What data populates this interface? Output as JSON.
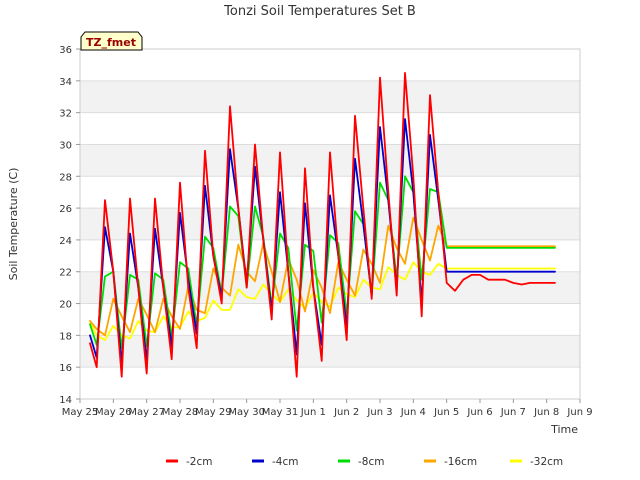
{
  "chart_data": {
    "type": "line",
    "title": "Tonzi Soil Temperatures Set B",
    "xlabel": "Time",
    "ylabel": "Soil Temperature (C)",
    "site_badge": "TZ_fmet",
    "xlim": [
      0,
      15
    ],
    "ylim": [
      14,
      36
    ],
    "x_ticks": [
      {
        "x": 0,
        "label": "May 25"
      },
      {
        "x": 1,
        "label": "May 26"
      },
      {
        "x": 2,
        "label": "May 27"
      },
      {
        "x": 3,
        "label": "May 28"
      },
      {
        "x": 4,
        "label": "May 29"
      },
      {
        "x": 5,
        "label": "May 30"
      },
      {
        "x": 6,
        "label": "May 31"
      },
      {
        "x": 7,
        "label": "Jun 1"
      },
      {
        "x": 8,
        "label": "Jun 2"
      },
      {
        "x": 9,
        "label": "Jun 3"
      },
      {
        "x": 10,
        "label": "Jun 4"
      },
      {
        "x": 11,
        "label": "Jun 5"
      },
      {
        "x": 12,
        "label": "Jun 6"
      },
      {
        "x": 13,
        "label": "Jun 7"
      },
      {
        "x": 14,
        "label": "Jun 8"
      },
      {
        "x": 15,
        "label": "Jun 9"
      }
    ],
    "y_ticks": [
      14,
      16,
      18,
      20,
      22,
      24,
      26,
      28,
      30,
      32,
      34,
      36
    ],
    "grid": "horizontal",
    "background_bands": "alternating gray",
    "legend_position": "bottom",
    "series": [
      {
        "name": "-2cm",
        "color": "#ff0000",
        "x": [
          0.3,
          0.5,
          0.75,
          1.0,
          1.25,
          1.5,
          1.75,
          2.0,
          2.25,
          2.5,
          2.75,
          3.0,
          3.25,
          3.5,
          3.75,
          4.0,
          4.25,
          4.5,
          4.75,
          5.0,
          5.25,
          5.5,
          5.75,
          6.0,
          6.25,
          6.5,
          6.75,
          7.0,
          7.25,
          7.5,
          7.75,
          8.0,
          8.25,
          8.5,
          8.75,
          9.0,
          9.25,
          9.5,
          9.75,
          10.0,
          10.25,
          10.5,
          10.75,
          11.0,
          11.25,
          11.5,
          11.75,
          12.0,
          12.25,
          12.5,
          12.75,
          13.0,
          13.25,
          13.5,
          13.75,
          14.0,
          14.25
        ],
        "y": [
          17.5,
          16.0,
          26.5,
          22.0,
          15.4,
          26.6,
          21.0,
          15.6,
          26.6,
          21.0,
          16.5,
          27.6,
          21.0,
          17.2,
          29.6,
          23.0,
          20.0,
          32.4,
          26.0,
          21.0,
          30.0,
          24.0,
          19.0,
          29.5,
          22.0,
          15.4,
          28.5,
          21.0,
          16.4,
          29.5,
          23.0,
          17.7,
          31.8,
          26.0,
          20.3,
          34.2,
          27.0,
          20.5,
          34.5,
          28.0,
          19.2,
          33.1,
          27.0,
          21.3,
          20.8,
          21.5,
          21.8,
          21.8,
          21.5,
          21.5,
          21.5,
          21.3,
          21.2,
          21.3,
          21.3,
          21.3,
          21.3
        ]
      },
      {
        "name": "-4cm",
        "color": "#0000cc",
        "x": [
          0.3,
          0.5,
          0.75,
          1.0,
          1.25,
          1.5,
          1.75,
          2.0,
          2.25,
          2.5,
          2.75,
          3.0,
          3.25,
          3.5,
          3.75,
          4.0,
          4.25,
          4.5,
          4.75,
          5.0,
          5.25,
          5.5,
          5.75,
          6.0,
          6.25,
          6.5,
          6.75,
          7.0,
          7.25,
          7.5,
          7.75,
          8.0,
          8.25,
          8.5,
          8.75,
          9.0,
          9.25,
          9.5,
          9.75,
          10.0,
          10.25,
          10.5,
          10.75,
          11.0,
          11.25,
          11.5,
          11.75,
          12.0,
          12.25,
          12.5,
          12.75,
          13.0,
          13.25,
          13.5,
          13.75,
          14.0,
          14.25
        ],
        "y": [
          18.0,
          16.6,
          24.8,
          22.0,
          16.2,
          24.4,
          21.0,
          16.4,
          24.7,
          21.0,
          17.3,
          25.7,
          21.5,
          18.1,
          27.4,
          23.0,
          20.4,
          29.7,
          26.0,
          21.2,
          28.6,
          24.0,
          19.5,
          27.0,
          22.0,
          16.8,
          26.3,
          21.0,
          17.4,
          26.8,
          23.0,
          18.5,
          29.1,
          25.0,
          20.5,
          31.1,
          26.5,
          20.9,
          31.6,
          27.0,
          20.0,
          30.6,
          26.5,
          22.0,
          22.0,
          22.0,
          22.0,
          22.0,
          22.0,
          22.0,
          22.0,
          22.0,
          22.0,
          22.0,
          22.0,
          22.0,
          22.0
        ]
      },
      {
        "name": "-8cm",
        "color": "#00dd00",
        "x": [
          0.3,
          0.5,
          0.75,
          1.0,
          1.25,
          1.5,
          1.75,
          2.0,
          2.25,
          2.5,
          2.75,
          3.0,
          3.25,
          3.5,
          3.75,
          4.0,
          4.25,
          4.5,
          4.75,
          5.0,
          5.25,
          5.5,
          5.75,
          6.0,
          6.25,
          6.5,
          6.75,
          7.0,
          7.25,
          7.5,
          7.75,
          8.0,
          8.25,
          8.5,
          8.75,
          9.0,
          9.25,
          9.5,
          9.75,
          10.0,
          10.25,
          10.5,
          10.75,
          11.0,
          11.25,
          11.5,
          11.75,
          12.0,
          12.25,
          12.5,
          12.75,
          13.0,
          13.25,
          13.5,
          13.75,
          14.0,
          14.25
        ],
        "y": [
          18.7,
          17.4,
          21.7,
          22.0,
          17.2,
          21.8,
          21.5,
          17.3,
          21.9,
          21.5,
          17.9,
          22.6,
          22.2,
          18.6,
          24.2,
          23.5,
          20.6,
          26.1,
          25.5,
          21.0,
          26.1,
          24.2,
          19.8,
          24.4,
          23.5,
          18.3,
          23.7,
          23.3,
          18.8,
          24.3,
          23.8,
          19.3,
          25.8,
          25.0,
          20.5,
          27.6,
          26.5,
          21.5,
          28.0,
          27.0,
          21.5,
          27.2,
          27.0,
          23.5,
          23.5,
          23.5,
          23.5,
          23.5,
          23.5,
          23.5,
          23.5,
          23.5,
          23.5,
          23.5,
          23.5,
          23.5,
          23.5
        ]
      },
      {
        "name": "-16cm",
        "color": "#ffa500",
        "x": [
          0.3,
          0.5,
          0.75,
          1.0,
          1.25,
          1.5,
          1.75,
          2.0,
          2.25,
          2.5,
          2.75,
          3.0,
          3.25,
          3.5,
          3.75,
          4.0,
          4.25,
          4.5,
          4.75,
          5.0,
          5.25,
          5.5,
          5.75,
          6.0,
          6.25,
          6.5,
          6.75,
          7.0,
          7.25,
          7.5,
          7.75,
          8.0,
          8.25,
          8.5,
          8.75,
          9.0,
          9.25,
          9.5,
          9.75,
          10.0,
          10.25,
          10.5,
          10.75,
          11.0,
          11.25,
          11.5,
          11.75,
          12.0,
          12.25,
          12.5,
          12.75,
          13.0,
          13.25,
          13.5,
          13.75,
          14.0,
          14.25
        ],
        "y": [
          18.9,
          18.4,
          18.0,
          20.3,
          19.2,
          18.2,
          20.3,
          19.3,
          18.2,
          20.3,
          19.2,
          18.4,
          21.1,
          19.6,
          19.4,
          22.2,
          21.0,
          20.5,
          23.7,
          22.0,
          21.4,
          23.8,
          22.0,
          20.1,
          22.8,
          21.5,
          19.5,
          22.1,
          21.0,
          19.4,
          22.6,
          21.5,
          20.5,
          23.4,
          22.5,
          21.3,
          24.9,
          23.5,
          22.5,
          25.4,
          24.0,
          22.7,
          24.9,
          23.6,
          23.6,
          23.6,
          23.6,
          23.6,
          23.6,
          23.6,
          23.6,
          23.6,
          23.6,
          23.6,
          23.6,
          23.6,
          23.6
        ]
      },
      {
        "name": "-32cm",
        "color": "#ffff00",
        "x": [
          0.3,
          0.5,
          0.75,
          1.0,
          1.25,
          1.5,
          1.75,
          2.0,
          2.25,
          2.5,
          2.75,
          3.0,
          3.25,
          3.5,
          3.75,
          4.0,
          4.25,
          4.5,
          4.75,
          5.0,
          5.25,
          5.5,
          5.75,
          6.0,
          6.25,
          6.5,
          6.75,
          7.0,
          7.25,
          7.5,
          7.75,
          8.0,
          8.25,
          8.5,
          8.75,
          9.0,
          9.25,
          9.5,
          9.75,
          10.0,
          10.25,
          10.5,
          10.75,
          11.0,
          11.25,
          11.5,
          11.75,
          12.0,
          12.25,
          12.5,
          12.75,
          13.0,
          13.25,
          13.5,
          13.75,
          14.0,
          14.25
        ],
        "y": [
          18.9,
          18.0,
          17.7,
          18.6,
          18.0,
          17.8,
          18.9,
          18.3,
          18.2,
          19.2,
          18.5,
          18.5,
          19.5,
          18.9,
          19.1,
          20.2,
          19.6,
          19.6,
          20.9,
          20.4,
          20.3,
          21.2,
          20.6,
          20.1,
          20.9,
          20.2,
          19.7,
          20.7,
          20.1,
          19.8,
          21.0,
          20.6,
          20.4,
          21.5,
          21.0,
          20.9,
          22.3,
          21.8,
          21.5,
          22.6,
          22.0,
          21.8,
          22.5,
          22.2,
          22.2,
          22.2,
          22.2,
          22.2,
          22.2,
          22.2,
          22.2,
          22.2,
          22.2,
          22.2,
          22.2,
          22.2,
          22.2
        ]
      }
    ]
  }
}
